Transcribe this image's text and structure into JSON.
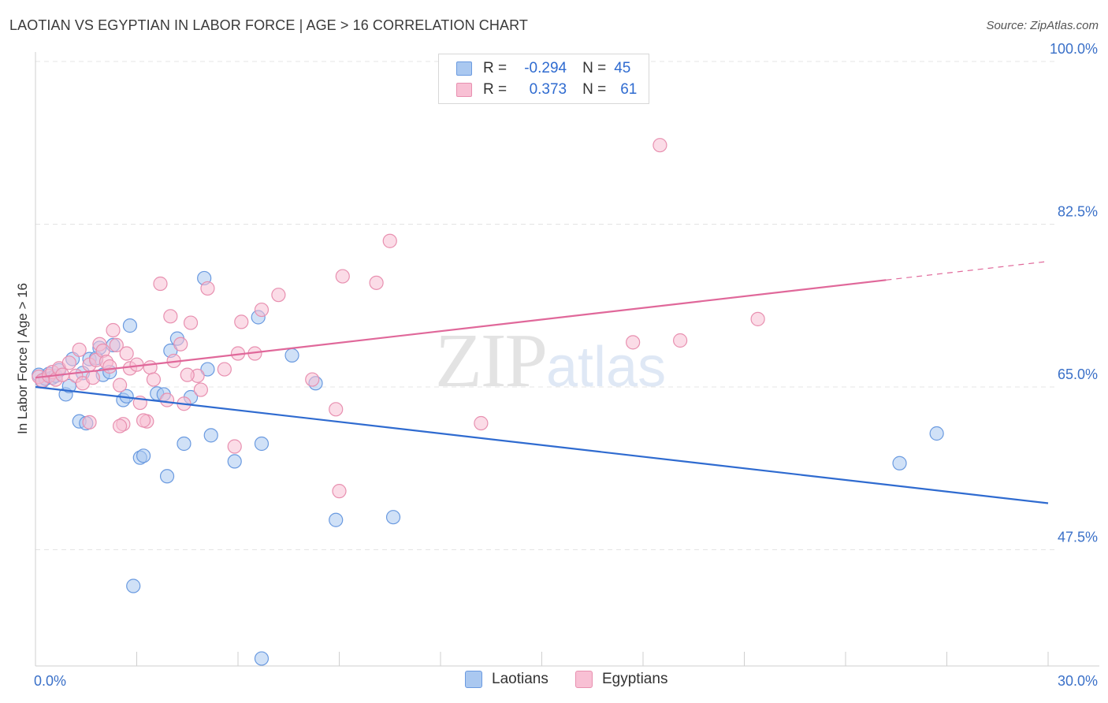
{
  "title": "LAOTIAN VS EGYPTIAN IN LABOR FORCE | AGE > 16 CORRELATION CHART",
  "source": "Source: ZipAtlas.com",
  "watermark": {
    "zip": "ZIP",
    "atlas": "atlas"
  },
  "legend": {
    "r_label": "R =",
    "n_label": "N =",
    "series": [
      {
        "name": "Laotians",
        "r": "-0.294",
        "n": "45",
        "fill": "#aac8f0",
        "stroke": "#6a9ae0"
      },
      {
        "name": "Egyptians",
        "r": "0.373",
        "n": "61",
        "fill": "#f8c0d4",
        "stroke": "#e890b0"
      }
    ]
  },
  "colors": {
    "blue_fill": "#aac8f0",
    "blue_stroke": "#6a9ae0",
    "blue_line": "#2f6bd0",
    "pink_fill": "#f8c0d4",
    "pink_stroke": "#e890b0",
    "pink_line": "#e0689a",
    "grid": "#e4e4e4",
    "axis_text": "#3a70c8"
  },
  "chart_data": {
    "type": "scatter",
    "title": "LAOTIAN VS EGYPTIAN IN LABOR FORCE | AGE > 16 CORRELATION CHART",
    "xlabel": "",
    "ylabel": "In Labor Force | Age > 16",
    "xlim": [
      0,
      30
    ],
    "ylim": [
      35,
      100
    ],
    "x_tick_labels": [
      "0.0%",
      "30.0%"
    ],
    "y_ticks": [
      47.5,
      65.0,
      82.5,
      100.0
    ],
    "y_tick_labels": [
      "47.5%",
      "65.0%",
      "82.5%",
      "100.0%"
    ],
    "series": [
      {
        "name": "Laotians",
        "r": -0.294,
        "n": 45,
        "trend": {
          "x0": 0,
          "y0": 65.0,
          "x1": 30,
          "y1": 52.5,
          "dash_from": null
        },
        "points": [
          [
            0.1,
            66.3
          ],
          [
            0.2,
            65.6
          ],
          [
            0.3,
            65.9
          ],
          [
            0.4,
            66.4
          ],
          [
            0.5,
            66.0
          ],
          [
            0.6,
            66.2
          ],
          [
            0.7,
            66.8
          ],
          [
            0.9,
            64.2
          ],
          [
            1.0,
            65.1
          ],
          [
            1.1,
            68.0
          ],
          [
            1.3,
            61.3
          ],
          [
            1.4,
            66.5
          ],
          [
            1.5,
            61.1
          ],
          [
            1.6,
            68.0
          ],
          [
            1.8,
            68.1
          ],
          [
            1.9,
            69.2
          ],
          [
            2.0,
            66.3
          ],
          [
            2.2,
            66.6
          ],
          [
            2.3,
            69.5
          ],
          [
            2.6,
            63.6
          ],
          [
            2.7,
            64.0
          ],
          [
            2.8,
            71.6
          ],
          [
            3.1,
            57.4
          ],
          [
            3.2,
            57.6
          ],
          [
            3.6,
            64.3
          ],
          [
            3.8,
            64.2
          ],
          [
            3.9,
            55.4
          ],
          [
            4.0,
            68.9
          ],
          [
            4.2,
            70.2
          ],
          [
            4.4,
            58.9
          ],
          [
            4.6,
            63.9
          ],
          [
            5.0,
            76.7
          ],
          [
            5.1,
            66.9
          ],
          [
            5.2,
            59.8
          ],
          [
            5.9,
            57.0
          ],
          [
            6.6,
            72.5
          ],
          [
            6.7,
            58.9
          ],
          [
            7.6,
            68.4
          ],
          [
            8.3,
            65.4
          ],
          [
            2.9,
            43.6
          ],
          [
            6.7,
            35.8
          ],
          [
            8.9,
            50.7
          ],
          [
            10.6,
            51.0
          ],
          [
            25.6,
            56.8
          ],
          [
            26.7,
            60.0
          ]
        ]
      },
      {
        "name": "Egyptians",
        "r": 0.373,
        "n": 61,
        "trend": {
          "x0": 0,
          "y0": 66.0,
          "x1": 25.2,
          "y1": 76.5,
          "dash_from": 25.2,
          "dash_x1": 30,
          "dash_y1": 78.5
        },
        "points": [
          [
            0.1,
            66.1
          ],
          [
            0.2,
            65.7
          ],
          [
            0.4,
            66.2
          ],
          [
            0.5,
            66.6
          ],
          [
            0.6,
            65.8
          ],
          [
            0.7,
            67.0
          ],
          [
            0.8,
            66.3
          ],
          [
            1.0,
            67.6
          ],
          [
            1.2,
            66.2
          ],
          [
            1.3,
            69.0
          ],
          [
            1.4,
            65.4
          ],
          [
            1.6,
            67.4
          ],
          [
            1.7,
            66.0
          ],
          [
            1.8,
            67.9
          ],
          [
            1.9,
            69.6
          ],
          [
            2.0,
            68.9
          ],
          [
            2.1,
            67.7
          ],
          [
            2.3,
            71.1
          ],
          [
            2.4,
            69.5
          ],
          [
            2.5,
            65.2
          ],
          [
            2.6,
            61.0
          ],
          [
            2.7,
            68.6
          ],
          [
            2.8,
            67.0
          ],
          [
            3.0,
            67.4
          ],
          [
            3.1,
            63.3
          ],
          [
            3.3,
            61.3
          ],
          [
            3.4,
            67.1
          ],
          [
            3.5,
            65.8
          ],
          [
            3.7,
            76.1
          ],
          [
            3.9,
            63.6
          ],
          [
            4.0,
            72.6
          ],
          [
            4.1,
            67.8
          ],
          [
            4.3,
            69.6
          ],
          [
            4.4,
            63.2
          ],
          [
            4.6,
            71.9
          ],
          [
            4.8,
            66.2
          ],
          [
            4.9,
            64.7
          ],
          [
            5.1,
            75.6
          ],
          [
            5.6,
            66.9
          ],
          [
            5.9,
            58.6
          ],
          [
            6.0,
            68.6
          ],
          [
            6.1,
            72.0
          ],
          [
            6.5,
            68.6
          ],
          [
            6.7,
            73.3
          ],
          [
            7.2,
            74.9
          ],
          [
            8.2,
            65.8
          ],
          [
            8.9,
            62.6
          ],
          [
            9.0,
            53.8
          ],
          [
            9.1,
            76.9
          ],
          [
            10.1,
            76.2
          ],
          [
            10.5,
            80.7
          ],
          [
            1.6,
            61.2
          ],
          [
            2.5,
            60.8
          ],
          [
            4.5,
            66.3
          ],
          [
            13.2,
            61.1
          ],
          [
            17.7,
            69.8
          ],
          [
            18.5,
            91.0
          ],
          [
            19.1,
            70.0
          ],
          [
            21.4,
            72.3
          ],
          [
            3.2,
            61.4
          ],
          [
            2.2,
            67.2
          ]
        ]
      }
    ]
  }
}
